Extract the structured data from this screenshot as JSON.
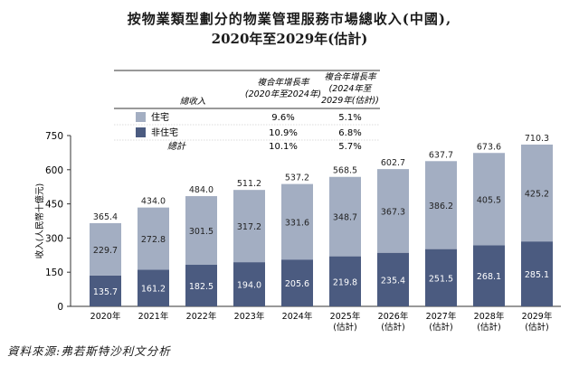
{
  "title_line1": "按物業類型劃分的物業管理服務市場總收入(中國),",
  "title_line2": "2020年至2029年(估計)",
  "source": "資料來源:弗若斯特沙利文分析",
  "colors": {
    "residential": "#a3aec2",
    "non_residential": "#4b5b80",
    "axis": "#333333"
  },
  "table": {
    "header_col0": "總收入",
    "header_col1_line1": "複合年增長率",
    "header_col1_line2": "(2020年至2024年)",
    "header_col2_line1": "複合年增長率",
    "header_col2_line2": "(2024年至",
    "header_col2_line3": "2029年(估計))",
    "rows": [
      {
        "label": "住宅",
        "cagr1": "9.6%",
        "cagr2": "5.1%",
        "swatch": "residential"
      },
      {
        "label": "非住宅",
        "cagr1": "10.9%",
        "cagr2": "6.8%",
        "swatch": "non_residential"
      },
      {
        "label": "總計",
        "cagr1": "10.1%",
        "cagr2": "5.7%",
        "swatch": ""
      }
    ]
  },
  "chart_data": {
    "type": "bar",
    "stacked": true,
    "ylabel": "收入(人民幣十億元)",
    "ylim": [
      0,
      750
    ],
    "yticks": [
      0,
      150,
      300,
      450,
      600,
      750
    ],
    "categories": [
      [
        "2020年"
      ],
      [
        "2021年"
      ],
      [
        "2022年"
      ],
      [
        "2023年"
      ],
      [
        "2024年"
      ],
      [
        "2025年",
        "(估計)"
      ],
      [
        "2026年",
        "(估計)"
      ],
      [
        "2027年",
        "(估計)"
      ],
      [
        "2028年",
        "(估計)"
      ],
      [
        "2029年",
        "(估計)"
      ]
    ],
    "series": [
      {
        "name": "非住宅",
        "color": "#4b5b80",
        "values": [
          135.7,
          161.2,
          182.5,
          194.0,
          205.6,
          219.8,
          235.4,
          251.5,
          268.1,
          285.1
        ]
      },
      {
        "name": "住宅",
        "color": "#a3aec2",
        "values": [
          229.7,
          272.8,
          301.5,
          317.2,
          331.6,
          348.7,
          367.3,
          386.2,
          405.5,
          425.2
        ]
      }
    ],
    "totals": [
      365.4,
      434.0,
      484.0,
      511.2,
      537.2,
      568.5,
      602.7,
      637.7,
      673.6,
      710.3
    ]
  }
}
